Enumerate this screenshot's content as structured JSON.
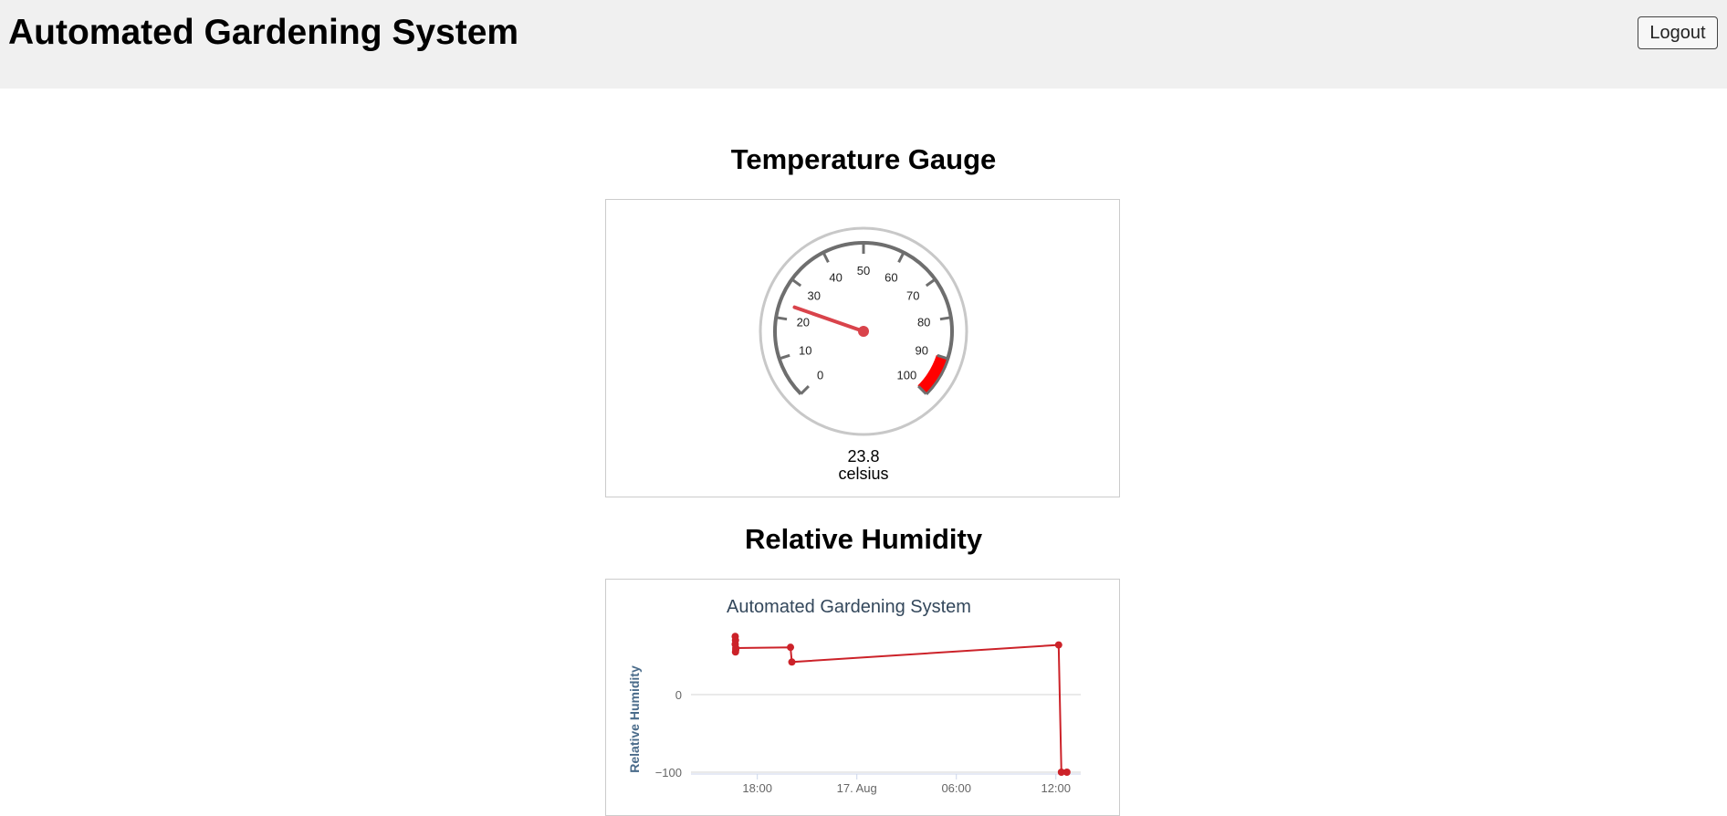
{
  "header": {
    "title": "Automated Gardening System",
    "logout_label": "Logout"
  },
  "gauge": {
    "section_title": "Temperature Gauge",
    "value": 23.8,
    "value_text": "23.8",
    "unit": "celsius",
    "min": 0,
    "max": 100,
    "tick_labels": [
      "0",
      "10",
      "20",
      "30",
      "40",
      "50",
      "60",
      "70",
      "80",
      "90",
      "100"
    ],
    "red_zone": [
      90,
      100
    ],
    "needle_color": "#d9434b",
    "red_zone_color": "#ff0000"
  },
  "humidity": {
    "section_title": "Relative Humidity"
  },
  "chart_data": {
    "type": "line",
    "title": "Automated Gardening System",
    "ylabel": "Relative Humidity",
    "xlabel": "",
    "y_ticks": [
      "0",
      "−100"
    ],
    "x_ticks": [
      "18:00",
      "17. Aug",
      "06:00",
      "12:00"
    ],
    "ylim": [
      -105,
      80
    ],
    "series": [
      {
        "color": "#cc2229",
        "points": [
          {
            "x": "2023-08-16T16:40",
            "y": 75
          },
          {
            "x": "2023-08-16T16:40",
            "y": 65
          },
          {
            "x": "2023-08-16T16:41",
            "y": 70
          },
          {
            "x": "2023-08-16T16:41",
            "y": 55
          },
          {
            "x": "2023-08-16T16:42",
            "y": 58
          },
          {
            "x": "2023-08-16T16:42",
            "y": 60
          },
          {
            "x": "2023-08-16T20:00",
            "y": 61
          },
          {
            "x": "2023-08-16T20:05",
            "y": 42
          },
          {
            "x": "2023-08-17T12:10",
            "y": 64
          },
          {
            "x": "2023-08-17T12:20",
            "y": -100
          },
          {
            "x": "2023-08-17T12:40",
            "y": -100
          }
        ]
      }
    ]
  }
}
